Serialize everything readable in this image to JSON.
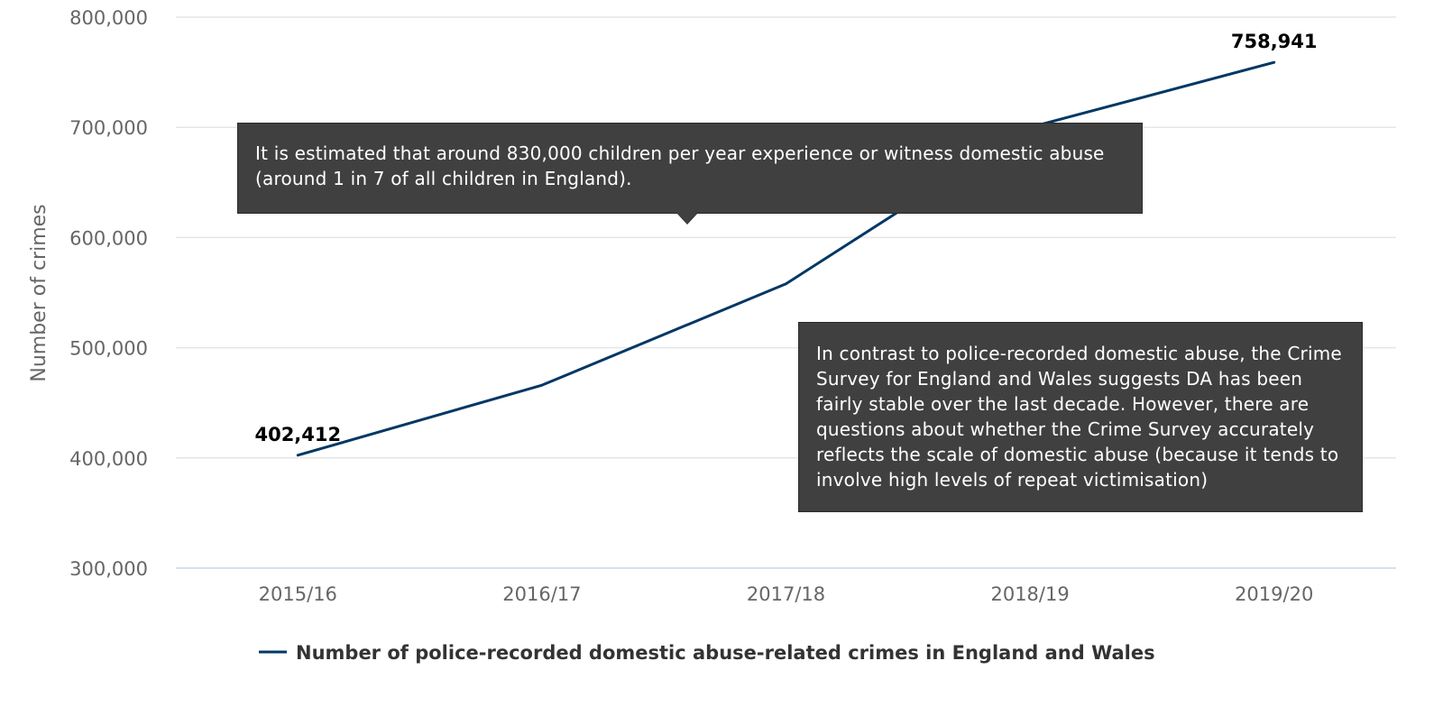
{
  "chart_data": {
    "type": "line",
    "categories": [
      "2015/16",
      "2016/17",
      "2017/18",
      "2018/19",
      "2019/20"
    ],
    "series": [
      {
        "name": "Number of police-recorded domestic abuse-related crimes in England and Wales",
        "values": [
          402412,
          466000,
          558000,
          700000,
          758941
        ],
        "color": "#003764"
      }
    ],
    "data_labels": [
      {
        "category": "2015/16",
        "text": "402,412"
      },
      {
        "category": "2019/20",
        "text": "758,941"
      }
    ],
    "ylabel": "Number of crimes",
    "ylim": [
      300000,
      800000
    ],
    "yticks": [
      300000,
      400000,
      500000,
      600000,
      700000,
      800000
    ],
    "ytick_labels": [
      "300,000",
      "400,000",
      "500,000",
      "600,000",
      "700,000",
      "800,000"
    ],
    "grid": true,
    "legend": "bottom",
    "gridline_color": "#e6e6e6",
    "tick_label_color": "#666666"
  },
  "annotations": [
    {
      "text": "It is estimated that around 830,000 children per year experience or witness domestic abuse (around 1 in 7 of all children in England)."
    },
    {
      "text": "In contrast to police-recorded domestic abuse, the Crime Survey for England and Wales suggests DA has been fairly stable over the last decade. However, there are questions about whether the Crime Survey accurately reflects the scale of domestic abuse (because it tends to involve high levels of repeat victimisation)"
    }
  ]
}
